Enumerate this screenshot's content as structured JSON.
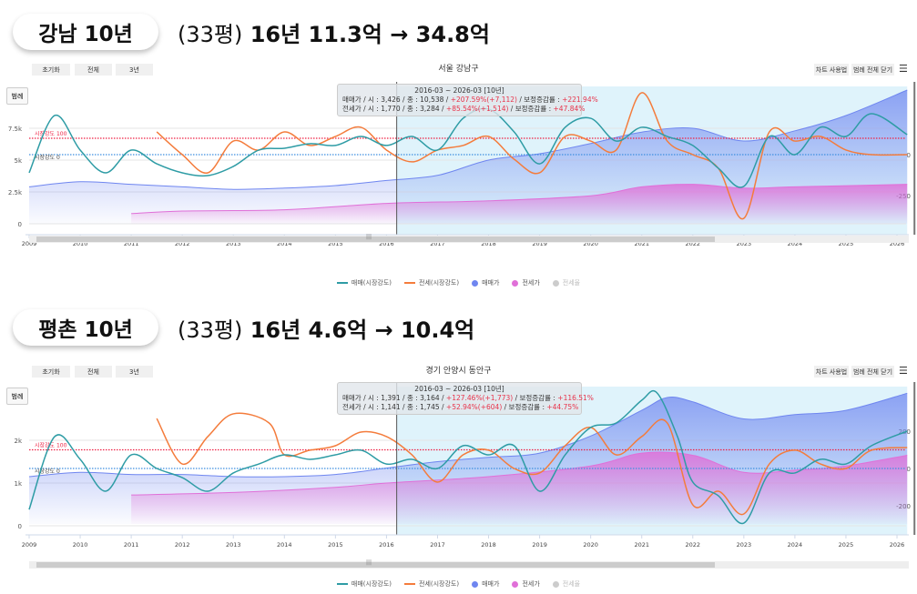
{
  "charts": [
    {
      "header": {
        "title": "강남 10년",
        "pyeong": "(33평)",
        "summary": "16년 11.3억 → 34.8억"
      },
      "toolbar": {
        "reset": "초기화",
        "all": "전체",
        "three_years": "3년",
        "guide": "차트 사용법",
        "close_legend": "범례 전체 닫기",
        "legend_btn": "범례"
      },
      "region": "서울 강남구",
      "tooltip": {
        "period": "2016-03 ~ 2026-03 [10년]",
        "sale_prefix": "매매가 / 시 : 3,426 / 종 : 10,538 / ",
        "sale_change": "+207.59%(+7,112)",
        "sale_mid": " / 보정증감률 : ",
        "sale_adj": "+221.94%",
        "jeonse_prefix": "전세가 / 시 : 1,770 / 종 : 3,284  / ",
        "jeonse_change": "+85.54%(+1,514)",
        "jeonse_mid": "  / 보정증감률 : ",
        "jeonse_adj": "+47.84%"
      },
      "strength_100_label": "시장강도 100",
      "strength_0_label": "시장강도 0",
      "legend": [
        "매매(시장강도)",
        "전세(시장강도)",
        "매매가",
        "전세가",
        "전세율"
      ],
      "colors": {
        "sale_line": "#2e9ca5",
        "jeonse_line": "#f47c3c",
        "sale_area": "#6f86f0",
        "jeonse_area": "#e070d8",
        "strength100": "#ee2244",
        "strength0": "#3f8fe0"
      },
      "chart_data": {
        "type": "line",
        "x_ticks": [
          2009,
          2010,
          2011,
          2012,
          2013,
          2014,
          2015,
          2016,
          2017,
          2018,
          2019,
          2020,
          2021,
          2022,
          2023,
          2024,
          2025,
          2026
        ],
        "left_ticks": [
          {
            "v": 0,
            "label": "0"
          },
          {
            "v": 2500,
            "label": "2.5k"
          },
          {
            "v": 5000,
            "label": "5k"
          },
          {
            "v": 7500,
            "label": "7.5k"
          }
        ],
        "right_ticks": [
          {
            "v": 0,
            "label": "0"
          },
          {
            "v": -250,
            "label": "-250"
          }
        ],
        "highlight_range": [
          2016.2,
          2026.2
        ],
        "sale_price": [
          [
            2009,
            2900
          ],
          [
            2010,
            3300
          ],
          [
            2011,
            3100
          ],
          [
            2012,
            2900
          ],
          [
            2013,
            2700
          ],
          [
            2014,
            2800
          ],
          [
            2015,
            3000
          ],
          [
            2016,
            3400
          ],
          [
            2017,
            3800
          ],
          [
            2018,
            5000
          ],
          [
            2019,
            5500
          ],
          [
            2020,
            6300
          ],
          [
            2021,
            7200
          ],
          [
            2022,
            7500
          ],
          [
            2023,
            6500
          ],
          [
            2024,
            7300
          ],
          [
            2025,
            8500
          ],
          [
            2026.2,
            10500
          ]
        ],
        "jeonse_price": [
          [
            2011,
            800
          ],
          [
            2012,
            1000
          ],
          [
            2014,
            1100
          ],
          [
            2016,
            1600
          ],
          [
            2018,
            1800
          ],
          [
            2020,
            2200
          ],
          [
            2021,
            2900
          ],
          [
            2022,
            3100
          ],
          [
            2023,
            2800
          ],
          [
            2024,
            2900
          ],
          [
            2026.2,
            3100
          ]
        ],
        "sale_strength": [
          [
            2009,
            -111
          ],
          [
            2009.5,
            239
          ],
          [
            2010,
            28
          ],
          [
            2010.5,
            -111
          ],
          [
            2011,
            28
          ],
          [
            2011.5,
            -56
          ],
          [
            2012,
            -111
          ],
          [
            2012.5,
            -128
          ],
          [
            2013,
            -72
          ],
          [
            2013.5,
            28
          ],
          [
            2014,
            39
          ],
          [
            2014.5,
            67
          ],
          [
            2015,
            56
          ],
          [
            2015.5,
            111
          ],
          [
            2016,
            56
          ],
          [
            2016.5,
            111
          ],
          [
            2017,
            28
          ],
          [
            2017.5,
            222
          ],
          [
            2018,
            278
          ],
          [
            2018.5,
            139
          ],
          [
            2019,
            -56
          ],
          [
            2019.5,
            167
          ],
          [
            2020,
            222
          ],
          [
            2020.5,
            83
          ],
          [
            2021,
            167
          ],
          [
            2021.5,
            111
          ],
          [
            2022,
            56
          ],
          [
            2022.5,
            -83
          ],
          [
            2023,
            -194
          ],
          [
            2023.5,
            111
          ],
          [
            2024,
            0
          ],
          [
            2024.5,
            167
          ],
          [
            2025,
            111
          ],
          [
            2025.5,
            250
          ],
          [
            2026.2,
            122
          ]
        ],
        "jeonse_strength": [
          [
            2011.5,
            139
          ],
          [
            2012,
            0
          ],
          [
            2012.5,
            -111
          ],
          [
            2013,
            83
          ],
          [
            2013.5,
            28
          ],
          [
            2014,
            139
          ],
          [
            2014.5,
            56
          ],
          [
            2015,
            111
          ],
          [
            2015.5,
            167
          ],
          [
            2016,
            28
          ],
          [
            2016.5,
            -44
          ],
          [
            2017,
            28
          ],
          [
            2017.5,
            56
          ],
          [
            2018,
            111
          ],
          [
            2018.5,
            -28
          ],
          [
            2019,
            -111
          ],
          [
            2019.5,
            111
          ],
          [
            2020,
            83
          ],
          [
            2020.5,
            28
          ],
          [
            2021,
            378
          ],
          [
            2021.5,
            83
          ],
          [
            2022,
            0
          ],
          [
            2022.5,
            -83
          ],
          [
            2023,
            -389
          ],
          [
            2023.5,
            139
          ],
          [
            2024,
            83
          ],
          [
            2024.5,
            111
          ],
          [
            2025,
            28
          ],
          [
            2025.5,
            0
          ],
          [
            2026.2,
            0
          ]
        ]
      }
    },
    {
      "header": {
        "title": "평촌 10년",
        "pyeong": "(33평)",
        "summary": "16년 4.6억 → 10.4억"
      },
      "toolbar": {
        "reset": "초기화",
        "all": "전체",
        "three_years": "3년",
        "guide": "차트 사용법",
        "close_legend": "범례 전체 닫기",
        "legend_btn": "범례"
      },
      "region": "경기 안양시 동안구",
      "tooltip": {
        "period": "2016-03 ~ 2026-03 [10년]",
        "sale_prefix": "매매가 / 시 : 1,391 / 종 : 3,164 / ",
        "sale_change": "+127.46%(+1,773)",
        "sale_mid": " / 보정증감률 : ",
        "sale_adj": "+116.51%",
        "jeonse_prefix": "전세가 / 시 : 1,141 / 종 : 1,745 / ",
        "jeonse_change": "+52.94%(+604)",
        "jeonse_mid": "      / 보정증감률 : ",
        "jeonse_adj": "+44.75%"
      },
      "strength_100_label": "시장강도 100",
      "strength_0_label": "시장강도 0",
      "legend": [
        "매매(시장강도)",
        "전세(시장강도)",
        "매매가",
        "전세가",
        "전세율"
      ],
      "colors": {
        "sale_line": "#2e9ca5",
        "jeonse_line": "#f47c3c",
        "sale_area": "#6f86f0",
        "jeonse_area": "#e070d8",
        "strength100": "#ee2244",
        "strength0": "#3f8fe0"
      },
      "chart_data": {
        "type": "line",
        "x_ticks": [
          2009,
          2010,
          2011,
          2012,
          2013,
          2014,
          2015,
          2016,
          2017,
          2018,
          2019,
          2020,
          2021,
          2022,
          2023,
          2024,
          2025,
          2026
        ],
        "left_ticks": [
          {
            "v": 0,
            "label": "0"
          },
          {
            "v": 1000,
            "label": "1k"
          },
          {
            "v": 2000,
            "label": "2k"
          }
        ],
        "right_ticks": [
          {
            "v": 200,
            "label": "200"
          },
          {
            "v": 0,
            "label": "0"
          },
          {
            "v": -200,
            "label": "-200"
          }
        ],
        "highlight_range": [
          2016.2,
          2026.2
        ],
        "sale_price": [
          [
            2009,
            1150
          ],
          [
            2010,
            1250
          ],
          [
            2011,
            1200
          ],
          [
            2012,
            1200
          ],
          [
            2013,
            1150
          ],
          [
            2014,
            1150
          ],
          [
            2015,
            1200
          ],
          [
            2016,
            1350
          ],
          [
            2017,
            1500
          ],
          [
            2018,
            1600
          ],
          [
            2019,
            1700
          ],
          [
            2020,
            2100
          ],
          [
            2021,
            2700
          ],
          [
            2021.5,
            3000
          ],
          [
            2022,
            2900
          ],
          [
            2023,
            2500
          ],
          [
            2024,
            2600
          ],
          [
            2025,
            2700
          ],
          [
            2026.2,
            3100
          ]
        ],
        "jeonse_price": [
          [
            2011,
            720
          ],
          [
            2013,
            780
          ],
          [
            2015,
            900
          ],
          [
            2016,
            1000
          ],
          [
            2018,
            1150
          ],
          [
            2020,
            1400
          ],
          [
            2021,
            1700
          ],
          [
            2022,
            1650
          ],
          [
            2023,
            1250
          ],
          [
            2024,
            1300
          ],
          [
            2025,
            1400
          ],
          [
            2026.2,
            1650
          ]
        ],
        "sale_strength": [
          [
            2009,
            -220
          ],
          [
            2009.5,
            171
          ],
          [
            2010,
            49
          ],
          [
            2010.5,
            -122
          ],
          [
            2011,
            73
          ],
          [
            2011.5,
            0
          ],
          [
            2012,
            -49
          ],
          [
            2012.5,
            -122
          ],
          [
            2013,
            -24
          ],
          [
            2013.5,
            24
          ],
          [
            2014,
            73
          ],
          [
            2014.5,
            49
          ],
          [
            2015,
            73
          ],
          [
            2015.5,
            98
          ],
          [
            2016,
            24
          ],
          [
            2016.5,
            49
          ],
          [
            2017,
            0
          ],
          [
            2017.5,
            122
          ],
          [
            2018,
            73
          ],
          [
            2018.5,
            122
          ],
          [
            2019,
            -122
          ],
          [
            2019.5,
            73
          ],
          [
            2020,
            220
          ],
          [
            2020.5,
            244
          ],
          [
            2021,
            366
          ],
          [
            2021.3,
            405
          ],
          [
            2021.7,
            171
          ],
          [
            2022,
            -73
          ],
          [
            2022.5,
            -146
          ],
          [
            2023,
            -293
          ],
          [
            2023.5,
            -24
          ],
          [
            2024,
            -24
          ],
          [
            2024.5,
            49
          ],
          [
            2025,
            24
          ],
          [
            2025.5,
            122
          ],
          [
            2026.2,
            200
          ]
        ],
        "jeonse_strength": [
          [
            2011.5,
            268
          ],
          [
            2012,
            24
          ],
          [
            2012.5,
            171
          ],
          [
            2013,
            293
          ],
          [
            2013.7,
            244
          ],
          [
            2014,
            73
          ],
          [
            2014.5,
            98
          ],
          [
            2015,
            122
          ],
          [
            2015.5,
            195
          ],
          [
            2016,
            171
          ],
          [
            2016.5,
            73
          ],
          [
            2017,
            -73
          ],
          [
            2017.5,
            73
          ],
          [
            2018,
            98
          ],
          [
            2018.5,
            0
          ],
          [
            2019,
            -24
          ],
          [
            2019.5,
            122
          ],
          [
            2020,
            220
          ],
          [
            2020.5,
            73
          ],
          [
            2021,
            171
          ],
          [
            2021.5,
            244
          ],
          [
            2022,
            -195
          ],
          [
            2022.5,
            -122
          ],
          [
            2023,
            -244
          ],
          [
            2023.5,
            24
          ],
          [
            2024,
            98
          ],
          [
            2024.5,
            24
          ],
          [
            2025,
            0
          ],
          [
            2025.5,
            98
          ],
          [
            2026.2,
            112
          ]
        ]
      }
    }
  ]
}
